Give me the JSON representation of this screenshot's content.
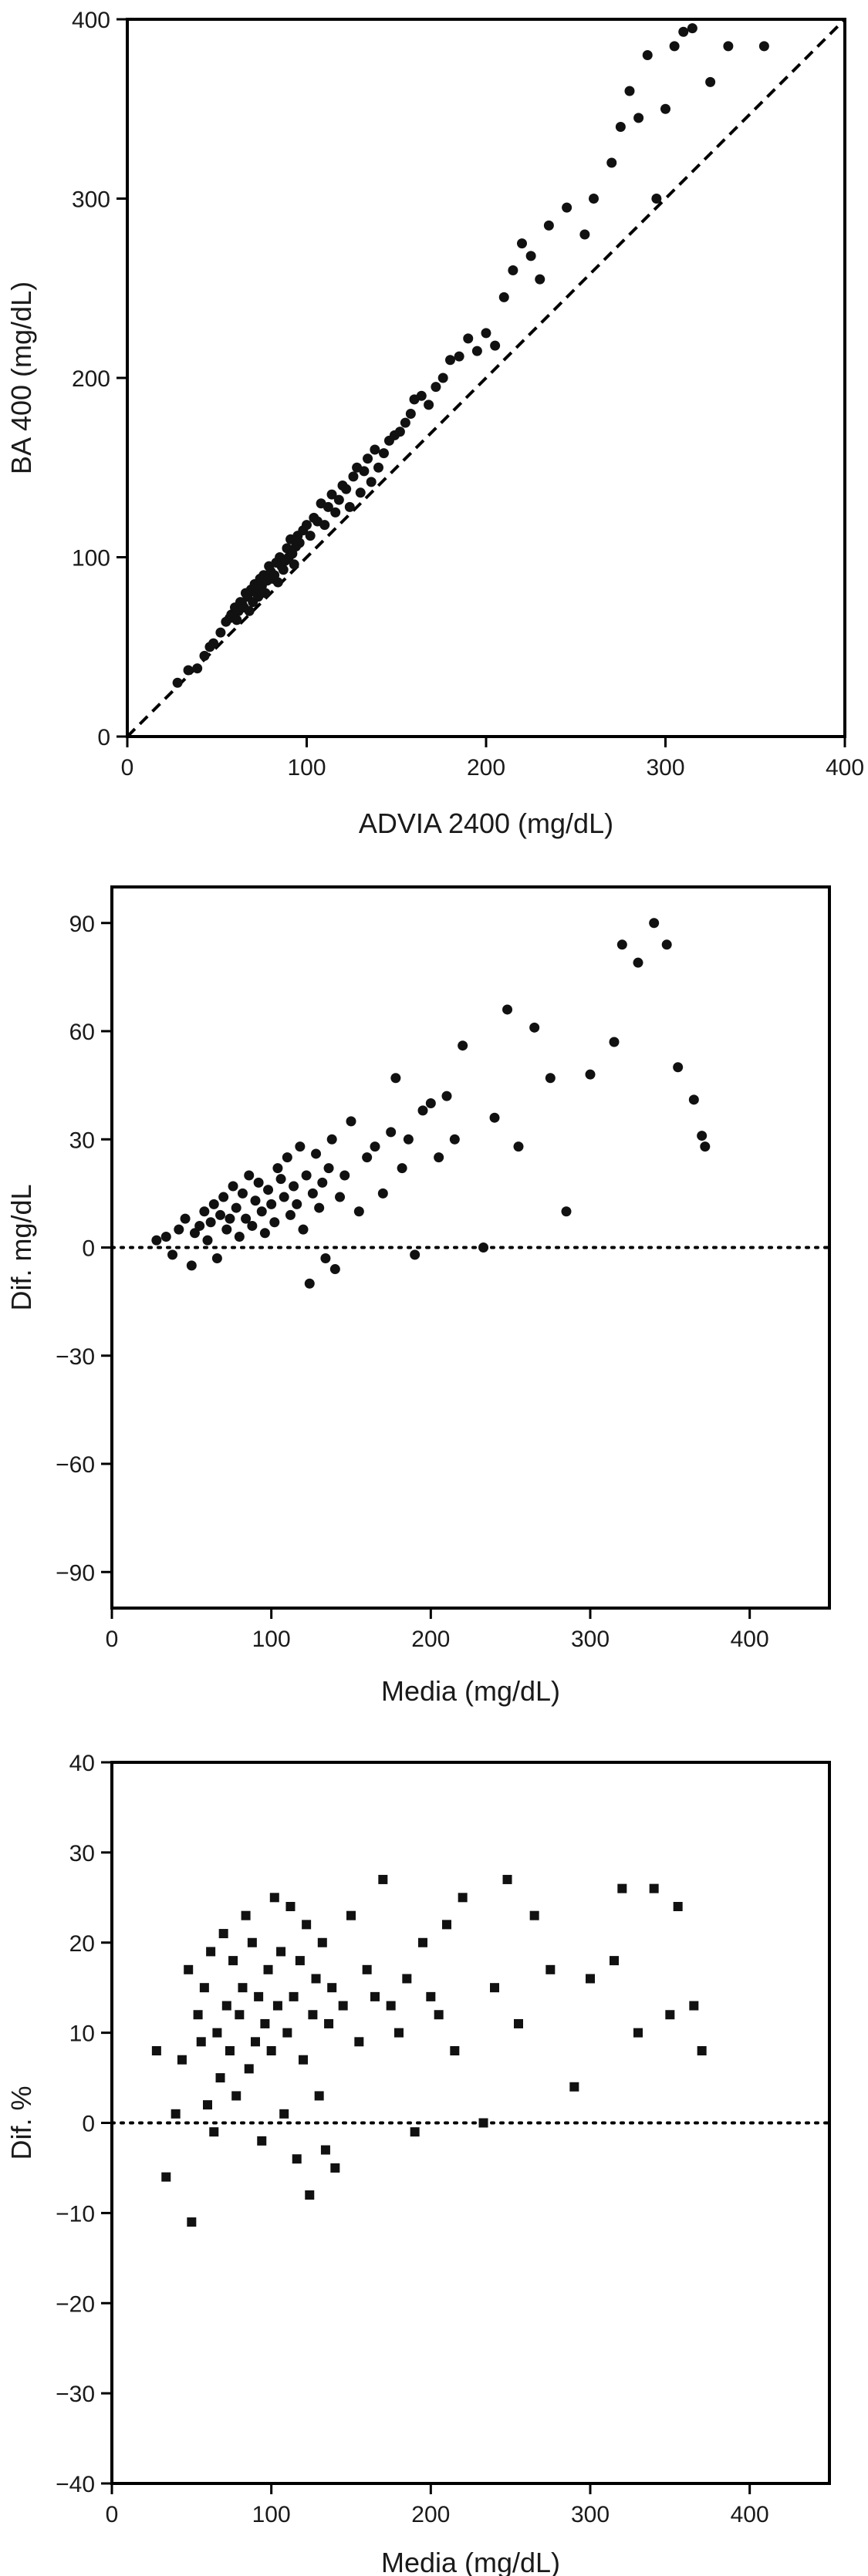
{
  "chart_data": [
    {
      "type": "scatter",
      "xlabel": "ADVIA 2400 (mg/dL)",
      "ylabel": "BA 400 (mg/dL)",
      "xlim": [
        0,
        400
      ],
      "ylim": [
        0,
        400
      ],
      "xticks": [
        "0",
        "100",
        "200",
        "300",
        "400"
      ],
      "yticks": [
        "0",
        "100",
        "200",
        "300",
        "400"
      ],
      "reference_line": "y = x (dashed)",
      "marker": "circle",
      "x": [
        28,
        34,
        39,
        43,
        46,
        48,
        52,
        55,
        57,
        58,
        60,
        61,
        62,
        63,
        64,
        65,
        66,
        67,
        68,
        69,
        70,
        71,
        72,
        73,
        74,
        75,
        76,
        77,
        78,
        79,
        80,
        81,
        82,
        83,
        84,
        85,
        86,
        87,
        88,
        89,
        90,
        91,
        92,
        93,
        94,
        95,
        96,
        98,
        100,
        102,
        104,
        106,
        108,
        110,
        112,
        114,
        116,
        118,
        120,
        122,
        124,
        126,
        128,
        130,
        132,
        134,
        136,
        138,
        140,
        143,
        146,
        149,
        152,
        155,
        158,
        160,
        164,
        168,
        172,
        176,
        180,
        185,
        190,
        195,
        200,
        205,
        210,
        215,
        220,
        225,
        230,
        235,
        245,
        255,
        260,
        270,
        275,
        280,
        285,
        290,
        295,
        300,
        305,
        310,
        315,
        325,
        335,
        355
      ],
      "y": [
        30,
        37,
        38,
        45,
        50,
        52,
        58,
        64,
        66,
        68,
        72,
        65,
        70,
        75,
        74,
        72,
        80,
        78,
        70,
        82,
        75,
        85,
        80,
        78,
        88,
        84,
        90,
        80,
        87,
        95,
        92,
        88,
        90,
        97,
        86,
        100,
        95,
        93,
        98,
        105,
        100,
        110,
        102,
        96,
        106,
        112,
        108,
        115,
        118,
        112,
        122,
        120,
        130,
        118,
        128,
        135,
        125,
        132,
        140,
        138,
        128,
        145,
        150,
        136,
        148,
        155,
        142,
        160,
        150,
        158,
        165,
        168,
        170,
        175,
        180,
        188,
        190,
        185,
        195,
        200,
        210,
        212,
        222,
        215,
        225,
        218,
        245,
        260,
        275,
        268,
        255,
        285,
        295,
        280,
        300,
        320,
        340,
        360,
        345,
        380,
        300,
        350,
        385,
        393,
        395,
        365,
        385,
        385
      ]
    },
    {
      "type": "scatter",
      "xlabel": "Media (mg/dL)",
      "ylabel": "Dif. mg/dL",
      "xlim": [
        0,
        450
      ],
      "ylim": [
        -100,
        100
      ],
      "xticks": [
        "0",
        "100",
        "200",
        "300",
        "400"
      ],
      "yticks": [
        "90",
        "60",
        "30",
        "0",
        "−30",
        "−60",
        "−90"
      ],
      "reference_line": "y = 0 (dotted)",
      "marker": "circle",
      "x": [
        28,
        34,
        38,
        42,
        46,
        50,
        52,
        55,
        58,
        60,
        62,
        64,
        66,
        68,
        70,
        72,
        74,
        76,
        78,
        80,
        82,
        84,
        86,
        88,
        90,
        92,
        94,
        96,
        98,
        100,
        102,
        104,
        106,
        108,
        110,
        112,
        114,
        116,
        118,
        120,
        122,
        124,
        126,
        128,
        130,
        132,
        134,
        136,
        138,
        140,
        143,
        146,
        150,
        155,
        160,
        165,
        170,
        175,
        178,
        182,
        186,
        190,
        195,
        200,
        205,
        210,
        215,
        220,
        233,
        240,
        248,
        255,
        265,
        275,
        285,
        300,
        315,
        320,
        330,
        340,
        348,
        355,
        365,
        370,
        372
      ],
      "y": [
        2,
        3,
        -2,
        5,
        8,
        -5,
        4,
        6,
        10,
        2,
        7,
        12,
        -3,
        9,
        14,
        5,
        8,
        17,
        11,
        3,
        15,
        8,
        20,
        6,
        13,
        18,
        10,
        4,
        16,
        12,
        7,
        22,
        19,
        14,
        25,
        9,
        17,
        12,
        28,
        5,
        20,
        -10,
        15,
        26,
        11,
        18,
        -3,
        22,
        30,
        -6,
        14,
        20,
        35,
        10,
        25,
        28,
        15,
        32,
        47,
        22,
        30,
        -2,
        38,
        40,
        25,
        42,
        30,
        56,
        0,
        36,
        66,
        28,
        61,
        47,
        10,
        48,
        57,
        84,
        79,
        90,
        84,
        50,
        41,
        31,
        28
      ]
    },
    {
      "type": "scatter",
      "xlabel": "Media (mg/dL)",
      "ylabel": "Dif. %",
      "xlim": [
        0,
        450
      ],
      "ylim": [
        -40,
        40
      ],
      "xticks": [
        "0",
        "100",
        "200",
        "300",
        "400"
      ],
      "yticks": [
        "40",
        "30",
        "20",
        "10",
        "0",
        "−10",
        "−20",
        "−30",
        "−40"
      ],
      "reference_line": "y = 0 (dotted)",
      "marker": "square",
      "x": [
        28,
        34,
        40,
        44,
        48,
        50,
        54,
        56,
        58,
        60,
        62,
        64,
        66,
        68,
        70,
        72,
        74,
        76,
        78,
        80,
        82,
        84,
        86,
        88,
        90,
        92,
        94,
        96,
        98,
        100,
        102,
        104,
        106,
        108,
        110,
        112,
        114,
        116,
        118,
        120,
        122,
        124,
        126,
        128,
        130,
        132,
        134,
        136,
        138,
        140,
        145,
        150,
        155,
        160,
        165,
        170,
        175,
        180,
        185,
        190,
        195,
        200,
        205,
        210,
        215,
        220,
        233,
        240,
        248,
        255,
        265,
        275,
        290,
        300,
        315,
        320,
        330,
        340,
        350,
        355,
        365,
        370
      ],
      "y": [
        8,
        -6,
        1,
        7,
        17,
        -11,
        12,
        9,
        15,
        2,
        19,
        -1,
        10,
        5,
        21,
        13,
        8,
        18,
        3,
        12,
        15,
        23,
        6,
        20,
        9,
        14,
        -2,
        11,
        17,
        8,
        25,
        13,
        19,
        1,
        10,
        24,
        14,
        -4,
        18,
        7,
        22,
        -8,
        12,
        16,
        3,
        20,
        -3,
        11,
        15,
        -5,
        13,
        23,
        9,
        17,
        14,
        27,
        13,
        10,
        16,
        -1,
        20,
        14,
        12,
        22,
        8,
        25,
        0,
        15,
        27,
        11,
        23,
        17,
        4,
        16,
        18,
        26,
        10,
        26,
        12,
        24,
        13,
        8
      ]
    }
  ]
}
